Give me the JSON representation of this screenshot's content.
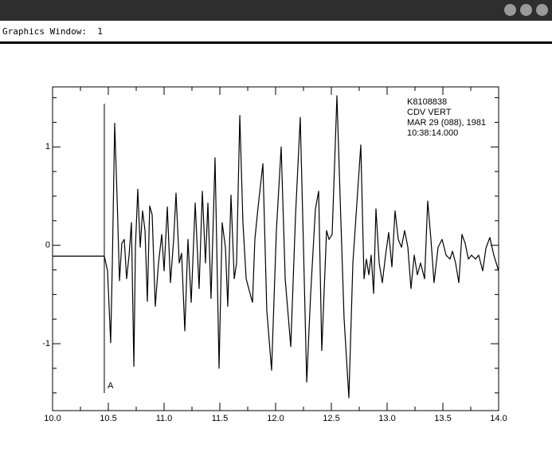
{
  "window": {
    "title": "Graphics Window:  1"
  },
  "chart_data": {
    "type": "line",
    "color": "#000000",
    "xlim": [
      10,
      14
    ],
    "ylim": [
      -1.68,
      1.61
    ],
    "xticks": [
      {
        "value": 10,
        "label": "10.0"
      },
      10.5,
      {
        "value": 11,
        "label": "11.0"
      },
      11.5,
      {
        "value": 12,
        "label": "12.0"
      },
      12.5,
      {
        "value": 13,
        "label": "13.0"
      },
      13.5,
      {
        "value": 14,
        "label": "14.0"
      }
    ],
    "yticks": [
      -1,
      0,
      1
    ],
    "x_minor_ticks": [
      10.25,
      10.75,
      11.25,
      11.75,
      12.25,
      12.75,
      13.25,
      13.75
    ],
    "y_minor_ticks": [
      -1.5,
      -1.25,
      -0.75,
      -0.5,
      -0.25,
      0.25,
      0.5,
      0.75,
      1.25,
      1.5
    ],
    "annotations": [
      "K8108838",
      "CDV  VERT",
      "MAR 29 (088), 1981",
      "10:38:14.000"
    ],
    "pick": {
      "x": 10.464,
      "label": "A"
    },
    "x": [
      10.0,
      10.464,
      10.493,
      10.521,
      10.536,
      10.557,
      10.579,
      10.6,
      10.621,
      10.643,
      10.664,
      10.686,
      10.707,
      10.729,
      10.743,
      10.764,
      10.786,
      10.807,
      10.829,
      10.85,
      10.871,
      10.893,
      10.921,
      10.95,
      10.979,
      11.0,
      11.029,
      11.057,
      11.086,
      11.107,
      11.136,
      11.157,
      11.186,
      11.214,
      11.243,
      11.279,
      11.314,
      11.343,
      11.371,
      11.393,
      11.421,
      11.457,
      11.493,
      11.521,
      11.55,
      11.571,
      11.6,
      11.629,
      11.65,
      11.679,
      11.707,
      11.736,
      11.764,
      11.793,
      11.814,
      11.843,
      11.886,
      11.921,
      11.964,
      12.007,
      12.05,
      12.086,
      12.136,
      12.179,
      12.221,
      12.25,
      12.279,
      12.314,
      12.357,
      12.386,
      12.414,
      12.457,
      12.479,
      12.507,
      12.55,
      12.579,
      12.614,
      12.657,
      12.693,
      12.729,
      12.764,
      12.793,
      12.814,
      12.836,
      12.857,
      12.879,
      12.9,
      12.929,
      12.957,
      12.986,
      13.014,
      13.043,
      13.071,
      13.1,
      13.129,
      13.157,
      13.186,
      13.214,
      13.243,
      13.271,
      13.3,
      13.336,
      13.364,
      13.393,
      13.421,
      13.457,
      13.493,
      13.529,
      13.564,
      13.586,
      13.614,
      13.643,
      13.671,
      13.7,
      13.729,
      13.757,
      13.793,
      13.821,
      13.857,
      13.886,
      13.921,
      13.957,
      14.0
    ],
    "values": [
      -0.11,
      -0.11,
      -0.26,
      -0.99,
      -0.18,
      1.24,
      0.47,
      -0.36,
      0.02,
      0.06,
      -0.34,
      -0.1,
      0.23,
      -1.23,
      -0.02,
      0.57,
      -0.02,
      0.35,
      0.15,
      -0.57,
      0.4,
      0.31,
      -0.62,
      -0.18,
      0.11,
      -0.26,
      0.39,
      -0.38,
      0.06,
      0.53,
      -0.18,
      -0.08,
      -0.87,
      0.06,
      -0.58,
      0.43,
      -0.44,
      0.55,
      -0.18,
      0.43,
      -0.54,
      0.89,
      -1.25,
      0.23,
      -0.02,
      -0.62,
      0.51,
      -0.34,
      -0.18,
      1.32,
      0.23,
      -0.34,
      -0.46,
      -0.58,
      0.06,
      0.39,
      0.83,
      -0.66,
      -1.27,
      0.15,
      1.0,
      -0.34,
      -1.03,
      0.31,
      1.3,
      -0.02,
      -1.39,
      -0.5,
      0.37,
      0.55,
      -1.07,
      0.15,
      0.06,
      0.11,
      1.52,
      0.47,
      -0.74,
      -1.55,
      -0.18,
      0.43,
      1.02,
      -0.34,
      -0.14,
      -0.3,
      -0.1,
      -0.49,
      0.37,
      -0.18,
      -0.38,
      -0.1,
      0.13,
      -0.22,
      0.35,
      0.06,
      -0.02,
      0.15,
      -0.02,
      -0.44,
      -0.1,
      -0.3,
      -0.18,
      -0.34,
      0.45,
      0.06,
      -0.38,
      -0.02,
      0.06,
      -0.1,
      -0.14,
      -0.06,
      -0.18,
      -0.38,
      0.11,
      0.02,
      -0.14,
      -0.1,
      -0.14,
      -0.1,
      -0.26,
      -0.03,
      0.08,
      -0.1,
      -0.26
    ]
  }
}
